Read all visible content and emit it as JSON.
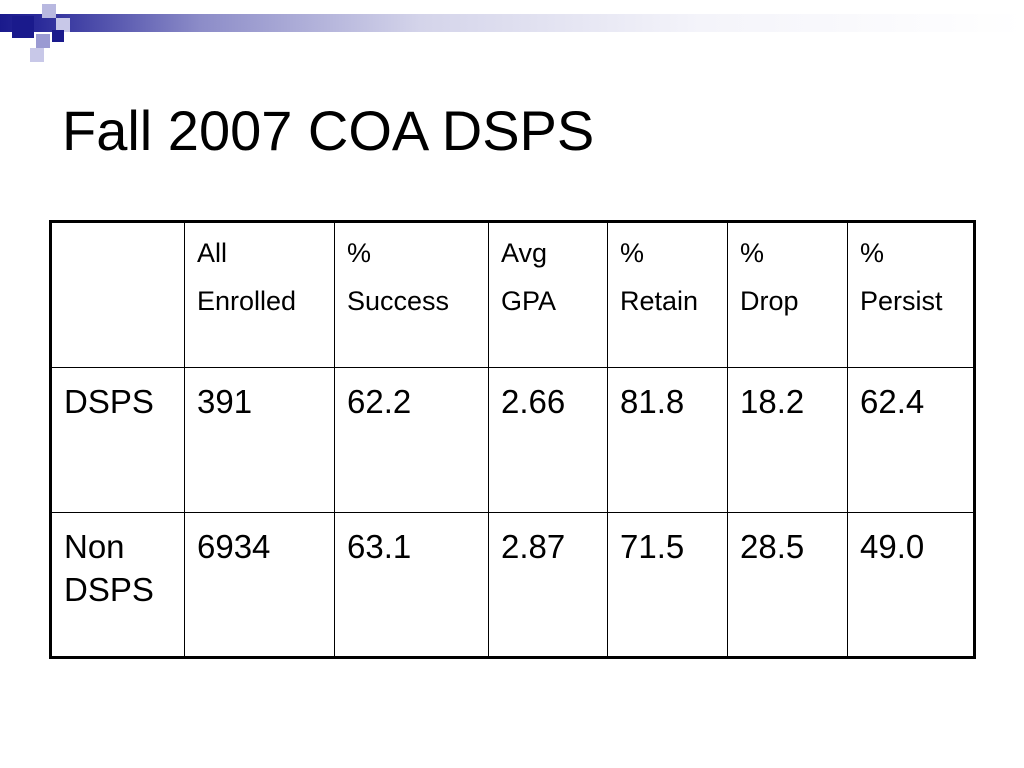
{
  "slide": {
    "title": "Fall 2007 COA DSPS"
  },
  "colors": {
    "accent_dark": "#1a1a8c",
    "accent_light": "#8c8cc8"
  },
  "table": {
    "header": [
      {
        "line1": "",
        "line2": ""
      },
      {
        "line1": "All",
        "line2": "Enrolled"
      },
      {
        "line1": "%",
        "line2": "Success"
      },
      {
        "line1": "Avg",
        "line2": "GPA"
      },
      {
        "line1": "%",
        "line2": "Retain"
      },
      {
        "line1": "%",
        "line2": "Drop"
      },
      {
        "line1": "%",
        "line2": "Persist"
      }
    ],
    "rows": [
      {
        "label": "DSPS",
        "cells": [
          "391",
          "62.2",
          "2.66",
          "81.8",
          "18.2",
          "62.4"
        ]
      },
      {
        "label": "Non DSPS",
        "cells": [
          "6934",
          "63.1",
          "2.87",
          "71.5",
          "28.5",
          "49.0"
        ]
      }
    ]
  }
}
